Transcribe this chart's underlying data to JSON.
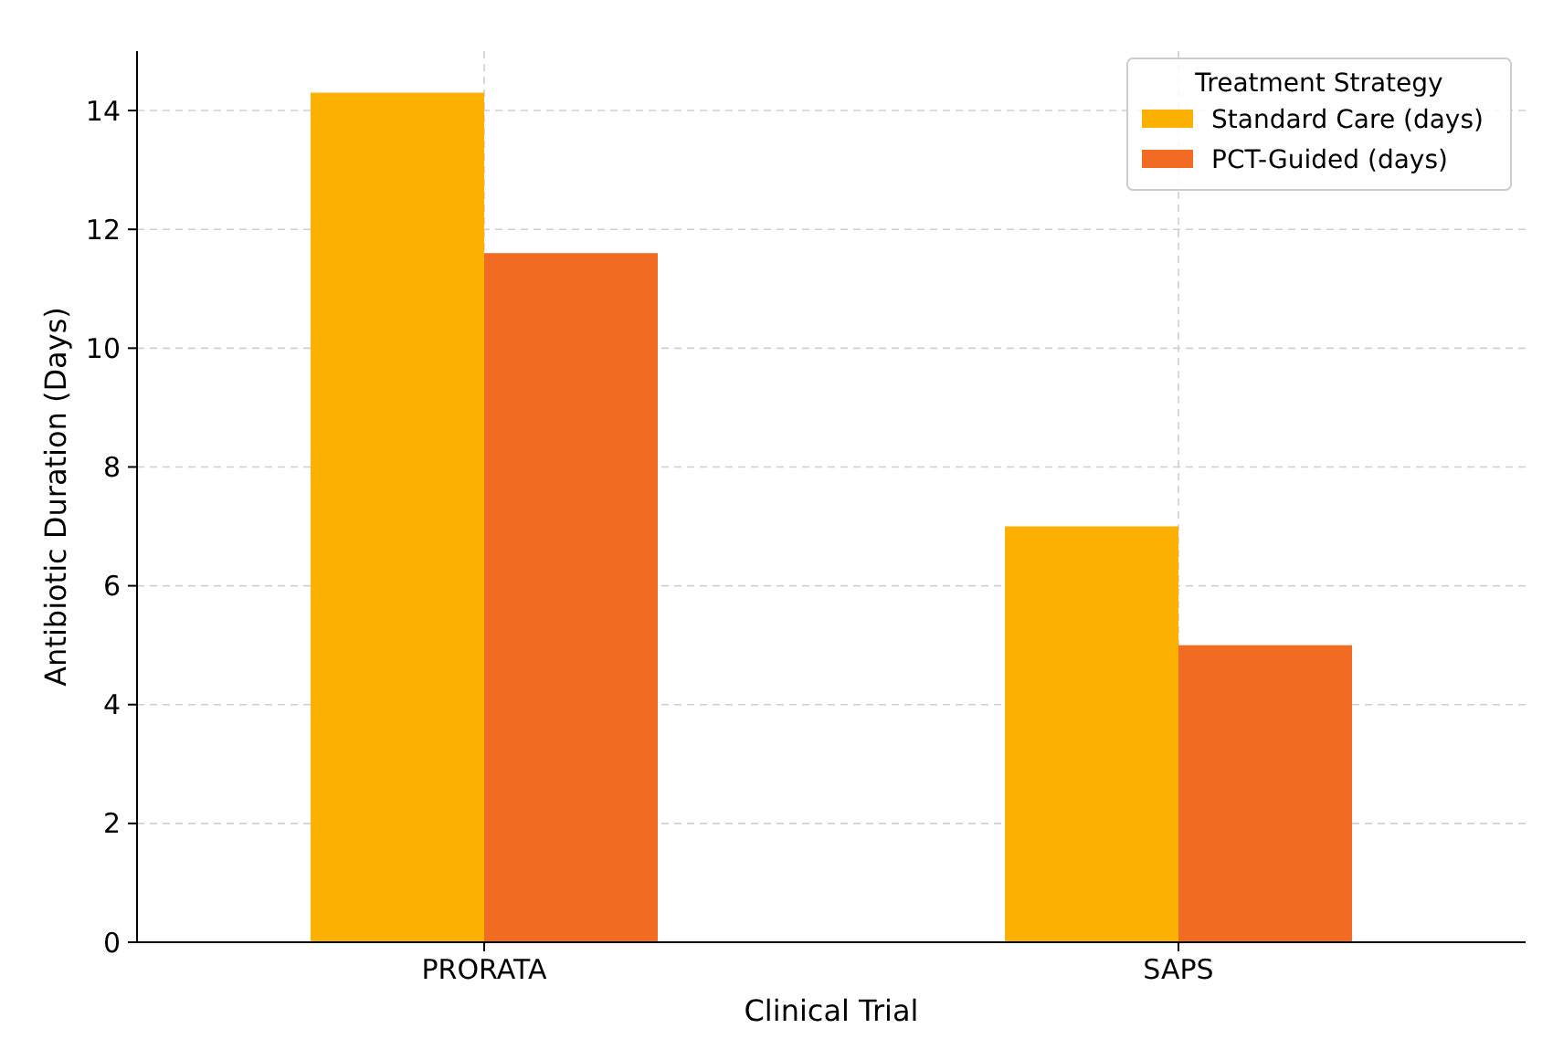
{
  "chart_data": {
    "type": "bar",
    "xlabel": "Clinical Trial",
    "ylabel": "Antibiotic Duration (Days)",
    "legend_title": "Treatment Strategy",
    "categories": [
      "PRORATA",
      "SAPS"
    ],
    "series": [
      {
        "name": "Standard Care (days)",
        "color": "#fbb002",
        "values": [
          14.3,
          7
        ]
      },
      {
        "name": "PCT-Guided (days)",
        "color": "#f26b22",
        "values": [
          11.6,
          5
        ]
      }
    ],
    "ylim": [
      0,
      15
    ],
    "yticks": [
      0,
      2,
      4,
      6,
      8,
      10,
      12,
      14
    ],
    "grid": true,
    "legend": "top right"
  }
}
